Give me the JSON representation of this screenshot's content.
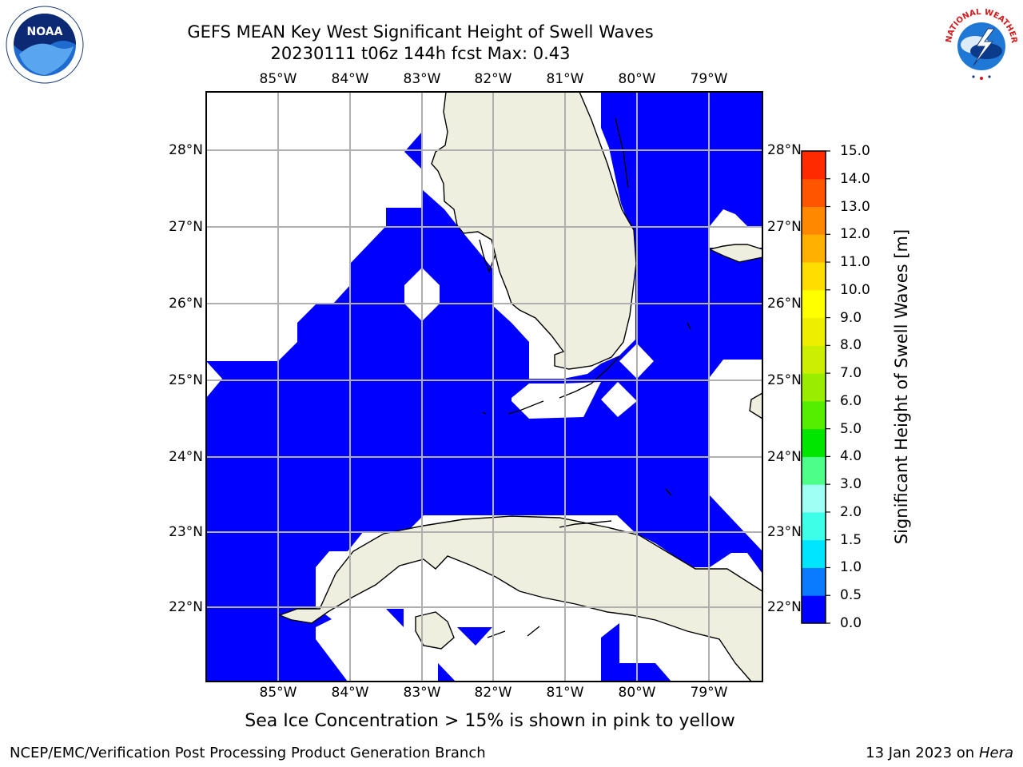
{
  "title": {
    "line1": "GEFS MEAN Key West Significant Height of Swell Waves",
    "line2": "20230111 t06z 144h fcst   Max: 0.43"
  },
  "map": {
    "lon_labels": [
      "85°W",
      "84°W",
      "83°W",
      "82°W",
      "81°W",
      "80°W",
      "79°W"
    ],
    "lat_labels": [
      "28°N",
      "27°N",
      "26°N",
      "25°N",
      "24°N",
      "23°N",
      "22°N"
    ],
    "colors": {
      "ocean_swell": "#0000ff",
      "land": "#efefdf",
      "gridline": "#b0b0b0",
      "background": "#ffffff"
    }
  },
  "colorbar": {
    "label": "Significant Height of Swell Waves [m]",
    "ticks": [
      "0.0",
      "0.5",
      "1.0",
      "1.5",
      "2.0",
      "3.0",
      "4.0",
      "5.0",
      "6.0",
      "7.0",
      "8.0",
      "9.0",
      "10.0",
      "11.0",
      "12.0",
      "13.0",
      "14.0",
      "15.0"
    ],
    "colors": [
      "#0000ff",
      "#0a7aff",
      "#00e5ff",
      "#3dffe8",
      "#a0fff4",
      "#4dff88",
      "#00e600",
      "#55ee00",
      "#99ee00",
      "#ccee00",
      "#eeee00",
      "#ffff00",
      "#ffdd00",
      "#ffb000",
      "#ff8800",
      "#ff5500",
      "#ff2a00",
      "#ff0000"
    ]
  },
  "note": "Sea Ice Concentration > 15% is shown in pink to yellow",
  "footer": {
    "left": "NCEP/EMC/Verification Post Processing Product Generation Branch",
    "right_date": "13 Jan 2023 on ",
    "right_machine": "Hera"
  },
  "logos": {
    "noaa_text": "NOAA",
    "nws_text": "NATIONAL WEATHER SERVICE"
  }
}
